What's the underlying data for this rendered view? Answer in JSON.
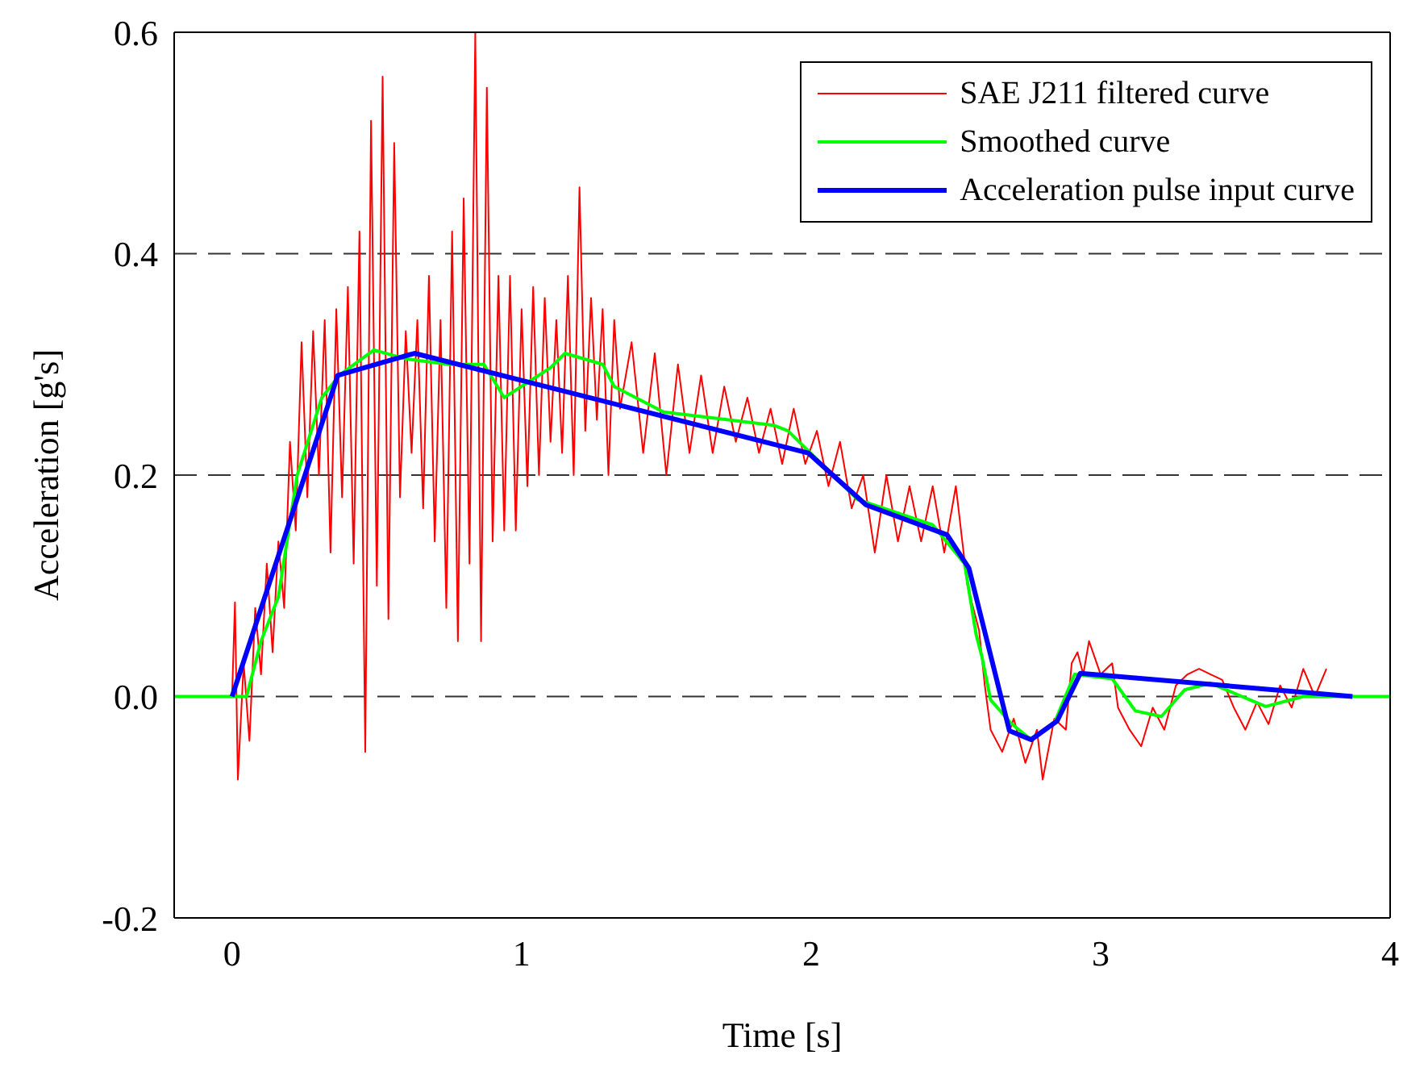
{
  "chart_data": {
    "type": "line",
    "xlabel": "Time [s]",
    "ylabel": "Acceleration [g's]",
    "xlim": [
      -0.2,
      4
    ],
    "xticks": [
      0,
      1,
      2,
      3,
      4
    ],
    "ylim": [
      -0.2,
      0.6
    ],
    "yticks": [
      {
        "value": -0.2,
        "label": "-0.2"
      },
      {
        "value": 0,
        "label": "0.0"
      },
      {
        "value": 0.2,
        "label": "0.2"
      },
      {
        "value": 0.4,
        "label": "0.4"
      },
      {
        "value": 0.6,
        "label": "0.6"
      }
    ],
    "grid": "y",
    "legend": "top right",
    "line_style": "solid",
    "marker": "none",
    "series": [
      {
        "name": "SAE J211 filtered curve",
        "color": "#ff0000",
        "x": [
          0,
          0.01,
          0.02,
          0.04,
          0.06,
          0.08,
          0.1,
          0.12,
          0.14,
          0.16,
          0.18,
          0.2,
          0.22,
          0.24,
          0.26,
          0.28,
          0.3,
          0.32,
          0.34,
          0.36,
          0.38,
          0.4,
          0.42,
          0.44,
          0.46,
          0.48,
          0.5,
          0.52,
          0.54,
          0.56,
          0.58,
          0.6,
          0.62,
          0.64,
          0.66,
          0.68,
          0.7,
          0.72,
          0.74,
          0.76,
          0.78,
          0.8,
          0.82,
          0.84,
          0.86,
          0.88,
          0.9,
          0.92,
          0.94,
          0.96,
          0.98,
          1.0,
          1.02,
          1.04,
          1.06,
          1.08,
          1.1,
          1.12,
          1.14,
          1.16,
          1.18,
          1.2,
          1.22,
          1.24,
          1.26,
          1.28,
          1.3,
          1.32,
          1.34,
          1.38,
          1.42,
          1.46,
          1.5,
          1.54,
          1.58,
          1.62,
          1.66,
          1.7,
          1.74,
          1.78,
          1.82,
          1.86,
          1.9,
          1.94,
          1.98,
          2.02,
          2.06,
          2.1,
          2.14,
          2.18,
          2.22,
          2.26,
          2.3,
          2.34,
          2.38,
          2.42,
          2.46,
          2.5,
          2.54,
          2.58,
          2.6,
          2.62,
          2.66,
          2.7,
          2.74,
          2.78,
          2.8,
          2.84,
          2.88,
          2.9,
          2.92,
          2.94,
          2.96,
          3.0,
          3.04,
          3.06,
          3.1,
          3.14,
          3.18,
          3.22,
          3.26,
          3.3,
          3.34,
          3.38,
          3.42,
          3.46,
          3.5,
          3.54,
          3.58,
          3.62,
          3.66,
          3.7,
          3.74,
          3.78
        ],
        "values": [
          0,
          0.085,
          -0.075,
          0.03,
          -0.04,
          0.08,
          0.02,
          0.12,
          0.04,
          0.14,
          0.08,
          0.23,
          0.15,
          0.32,
          0.18,
          0.33,
          0.2,
          0.34,
          0.13,
          0.35,
          0.18,
          0.37,
          0.12,
          0.42,
          -0.05,
          0.52,
          0.1,
          0.56,
          0.07,
          0.5,
          0.18,
          0.33,
          0.22,
          0.34,
          0.17,
          0.38,
          0.14,
          0.34,
          0.08,
          0.42,
          0.05,
          0.45,
          0.12,
          0.6,
          0.05,
          0.55,
          0.14,
          0.38,
          0.15,
          0.38,
          0.15,
          0.35,
          0.19,
          0.37,
          0.2,
          0.36,
          0.23,
          0.34,
          0.22,
          0.38,
          0.2,
          0.46,
          0.24,
          0.36,
          0.25,
          0.35,
          0.2,
          0.34,
          0.26,
          0.32,
          0.22,
          0.31,
          0.2,
          0.3,
          0.22,
          0.29,
          0.22,
          0.28,
          0.23,
          0.27,
          0.22,
          0.26,
          0.21,
          0.26,
          0.21,
          0.24,
          0.19,
          0.23,
          0.17,
          0.2,
          0.13,
          0.2,
          0.14,
          0.19,
          0.14,
          0.19,
          0.13,
          0.19,
          0.1,
          0.06,
          0.01,
          -0.03,
          -0.05,
          -0.02,
          -0.06,
          -0.03,
          -0.075,
          -0.02,
          -0.03,
          0.03,
          0.04,
          0.02,
          0.05,
          0.02,
          0.03,
          -0.01,
          -0.03,
          -0.045,
          -0.01,
          -0.03,
          0.01,
          0.02,
          0.025,
          0.02,
          0.015,
          -0.01,
          -0.03,
          -0.005,
          -0.025,
          0.01,
          -0.01,
          0.025,
          0,
          0.025
        ]
      },
      {
        "name": "Smoothed curve",
        "color": "#00ff00",
        "x": [
          -0.2,
          0.05,
          0.1,
          0.16,
          0.225,
          0.31,
          0.37,
          0.49,
          0.6,
          0.75,
          0.87,
          0.94,
          1.1,
          1.15,
          1.28,
          1.32,
          1.49,
          1.87,
          1.92,
          2.16,
          2.42,
          2.53,
          2.57,
          2.59,
          2.62,
          2.69,
          2.76,
          2.84,
          2.91,
          3.04,
          3.12,
          3.21,
          3.29,
          3.38,
          3.47,
          3.57,
          3.7,
          4.0
        ],
        "values": [
          0,
          0,
          0.05,
          0.09,
          0.2,
          0.27,
          0.29,
          0.313,
          0.305,
          0.3,
          0.3,
          0.27,
          0.297,
          0.31,
          0.3,
          0.28,
          0.257,
          0.245,
          0.24,
          0.178,
          0.155,
          0.12,
          0.056,
          0.036,
          -0.003,
          -0.024,
          -0.039,
          -0.024,
          0.02,
          0.016,
          -0.013,
          -0.018,
          0.006,
          0.012,
          0.002,
          -0.009,
          0,
          0
        ]
      },
      {
        "name": "Acceleration pulse input curve",
        "color": "#0000ff",
        "x": [
          0,
          0.365,
          0.63,
          1.99,
          2.19,
          2.47,
          2.545,
          2.685,
          2.76,
          2.85,
          2.93,
          3.87
        ],
        "values": [
          0,
          0.29,
          0.31,
          0.22,
          0.173,
          0.146,
          0.116,
          -0.031,
          -0.039,
          -0.022,
          0.021,
          0
        ]
      }
    ]
  }
}
